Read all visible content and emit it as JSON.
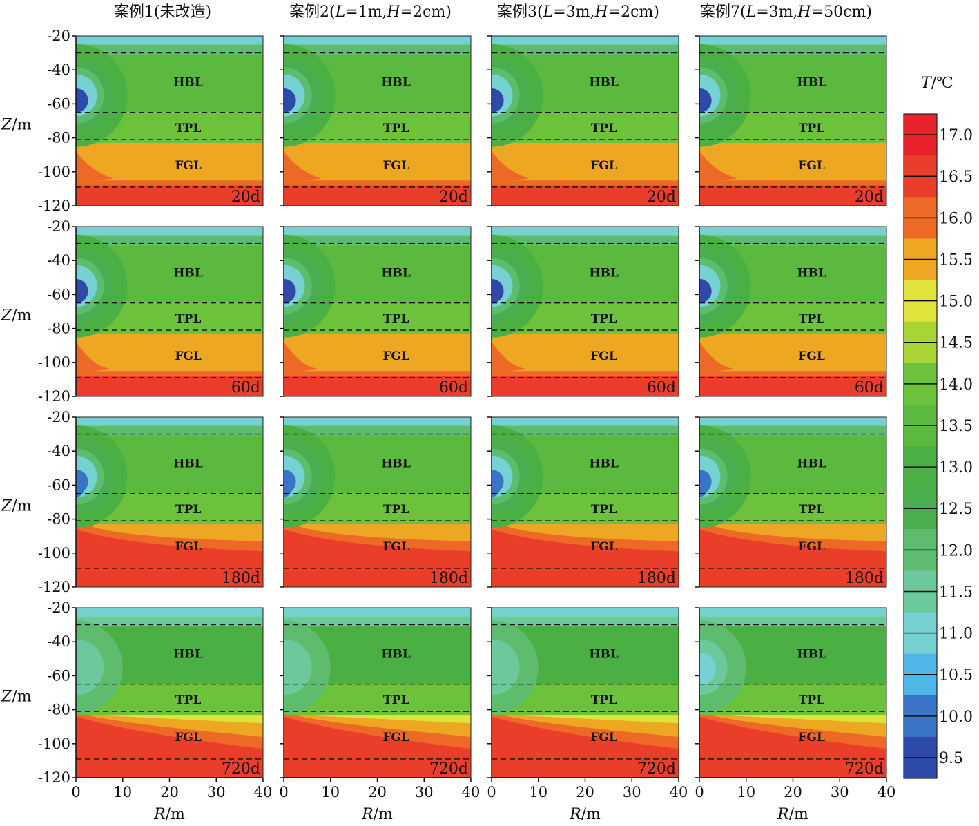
{
  "chart_data": {
    "type": "heatmap",
    "columns": [
      {
        "title": "案例1(未改造)"
      },
      {
        "title": "案例2(",
        "L": "L",
        "Lval": "=1m,",
        "H": "H",
        "Hval": "=2cm)"
      },
      {
        "title": "案例3(",
        "L": "L",
        "Lval": "=3m,",
        "H": "H",
        "Hval": "=2cm)"
      },
      {
        "title": "案例7(",
        "L": "L",
        "Lval": "=3m,",
        "H": "H",
        "Hval": "=50cm)"
      }
    ],
    "times": [
      "20d",
      "60d",
      "180d",
      "720d"
    ],
    "xlabel": {
      "var": "R",
      "unit": "/m"
    },
    "ylabel": {
      "var": "Z",
      "unit": "/m"
    },
    "xlim": [
      0,
      40
    ],
    "ylim": [
      -120,
      -20
    ],
    "xticks": [
      "0",
      "10",
      "20",
      "30",
      "40"
    ],
    "yticks": [
      "-20",
      "-40",
      "-60",
      "-80",
      "-100",
      "-120"
    ],
    "layers": [
      {
        "name": "HBL",
        "label_z": -47
      },
      {
        "name": "TPL",
        "label_z": -74
      },
      {
        "name": "FGL",
        "label_z": -96
      }
    ],
    "boundaries_z": [
      -30,
      -65,
      -81,
      -109
    ],
    "colorbar": {
      "title_var": "T",
      "title_unit": "/℃",
      "min": 9.25,
      "max": 17.25,
      "tick_labels": [
        "17.0",
        "16.5",
        "16.0",
        "15.5",
        "15.0",
        "14.5",
        "14.0",
        "13.5",
        "13.0",
        "12.5",
        "12.0",
        "11.5",
        "11.0",
        "10.5",
        "10.0",
        "9.5"
      ],
      "colors": [
        "#e8232a",
        "#ea3e2b",
        "#ec6a25",
        "#eea723",
        "#e0e43a",
        "#a8d436",
        "#6cc23a",
        "#5bb93f",
        "#4ab043",
        "#4aae4e",
        "#5dbc6d",
        "#6bc99c",
        "#76d2d2",
        "#4fb6e8",
        "#3a74c6",
        "#2e4aa8"
      ]
    },
    "panels": [
      {
        "case": 1,
        "time": "20d",
        "cold_core_T": 9.5,
        "cold_halo_T": 11.0
      },
      {
        "case": 2,
        "time": "20d",
        "cold_core_T": 9.5,
        "cold_halo_T": 11.0
      },
      {
        "case": 3,
        "time": "20d",
        "cold_core_T": 9.5,
        "cold_halo_T": 11.0
      },
      {
        "case": 7,
        "time": "20d",
        "cold_core_T": 9.5,
        "cold_halo_T": 11.0
      },
      {
        "case": 1,
        "time": "60d",
        "cold_core_T": 9.5,
        "cold_halo_T": 11.0
      },
      {
        "case": 2,
        "time": "60d",
        "cold_core_T": 9.5,
        "cold_halo_T": 11.0
      },
      {
        "case": 3,
        "time": "60d",
        "cold_core_T": 9.5,
        "cold_halo_T": 11.0
      },
      {
        "case": 7,
        "time": "60d",
        "cold_core_T": 9.5,
        "cold_halo_T": 11.0
      },
      {
        "case": 1,
        "time": "180d",
        "cold_core_T": 10.0,
        "cold_halo_T": 11.0
      },
      {
        "case": 2,
        "time": "180d",
        "cold_core_T": 10.0,
        "cold_halo_T": 11.0
      },
      {
        "case": 3,
        "time": "180d",
        "cold_core_T": 10.0,
        "cold_halo_T": 11.0
      },
      {
        "case": 7,
        "time": "180d",
        "cold_core_T": 10.0,
        "cold_halo_T": 11.0
      },
      {
        "case": 1,
        "time": "720d",
        "cold_core_T": 11.5,
        "cold_halo_T": 12.0
      },
      {
        "case": 2,
        "time": "720d",
        "cold_core_T": 11.5,
        "cold_halo_T": 12.0
      },
      {
        "case": 3,
        "time": "720d",
        "cold_core_T": 11.5,
        "cold_halo_T": 12.0
      },
      {
        "case": 7,
        "time": "720d",
        "cold_core_T": 11.0,
        "cold_halo_T": 12.0
      }
    ]
  }
}
